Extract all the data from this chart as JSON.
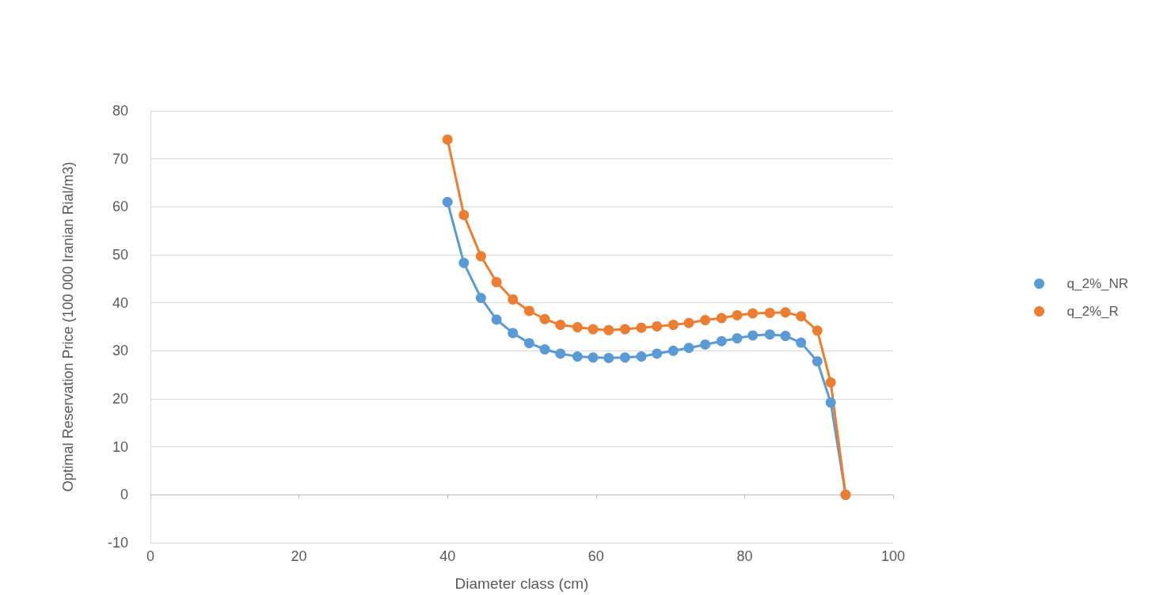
{
  "chart_data": {
    "type": "line",
    "xlabel": "Diameter class (cm)",
    "ylabel": "Optimal Reservation Price (100 000 Iranian Rial/m3)",
    "x": [
      40,
      42.2,
      44.5,
      46.6,
      48.8,
      51.0,
      53.1,
      55.2,
      57.5,
      59.6,
      61.7,
      63.9,
      66.1,
      68.2,
      70.4,
      72.5,
      74.7,
      76.9,
      79.0,
      81.1,
      83.4,
      85.5,
      87.6,
      89.8,
      91.6,
      93.6
    ],
    "series": [
      {
        "name": "q_2%_NR",
        "color": "#5b9bd5",
        "values": [
          61,
          48.3,
          41,
          36.5,
          33.7,
          31.6,
          30.3,
          29.4,
          28.8,
          28.6,
          28.5,
          28.6,
          28.8,
          29.4,
          30,
          30.6,
          31.3,
          32,
          32.6,
          33.2,
          33.4,
          33.1,
          31.7,
          27.8,
          19.2,
          0
        ]
      },
      {
        "name": "q_2%_R",
        "color": "#ed7d31",
        "values": [
          74,
          58.3,
          49.7,
          44.3,
          40.7,
          38.3,
          36.6,
          35.4,
          34.9,
          34.5,
          34.3,
          34.5,
          34.8,
          35.1,
          35.4,
          35.8,
          36.4,
          36.8,
          37.4,
          37.8,
          37.9,
          38,
          37.2,
          34.2,
          23.4,
          0
        ]
      }
    ],
    "xlim": [
      0,
      100
    ],
    "xticks": [
      0,
      20,
      40,
      60,
      80,
      100
    ],
    "ylim": [
      -10,
      80
    ],
    "yticks": [
      -10,
      0,
      10,
      20,
      30,
      40,
      50,
      60,
      70,
      80
    ],
    "grid": "y",
    "legend": "right",
    "marker": "circle",
    "line_style": "solid"
  }
}
